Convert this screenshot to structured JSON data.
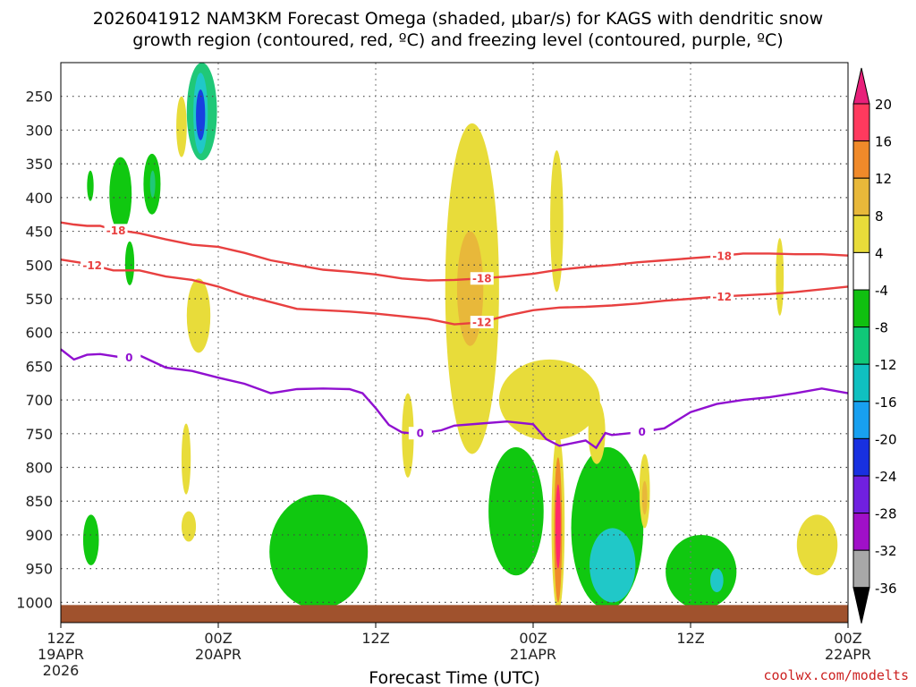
{
  "chart_data": {
    "type": "heatmap",
    "title_line1": "2026041912 NAM3KM Forecast Omega (shaded, μbar/s) for KAGS with dendritic snow",
    "title_line2": "growth region (contoured, red, ºC) and freezing level (contoured, purple, ºC)",
    "xlabel": "Forecast Time (UTC)",
    "ylabel": "",
    "credit": "coolwx.com/modelts",
    "x_range_hours": [
      0,
      60
    ],
    "y_range_hPa": [
      200,
      1030
    ],
    "y_ticks": [
      250,
      300,
      350,
      400,
      450,
      500,
      550,
      600,
      650,
      700,
      750,
      800,
      850,
      900,
      950,
      1000
    ],
    "x_ticks": [
      {
        "hour": 0,
        "line1": "12Z",
        "line2": "19APR",
        "line3": "2026"
      },
      {
        "hour": 12,
        "line1": "00Z",
        "line2": "20APR",
        "line3": ""
      },
      {
        "hour": 24,
        "line1": "12Z",
        "line2": "",
        "line3": ""
      },
      {
        "hour": 36,
        "line1": "00Z",
        "line2": "21APR",
        "line3": ""
      },
      {
        "hour": 48,
        "line1": "12Z",
        "line2": "",
        "line3": ""
      },
      {
        "hour": 60,
        "line1": "00Z",
        "line2": "22APR",
        "line3": ""
      }
    ],
    "colorbar": {
      "labels": [
        "20",
        "16",
        "12",
        "8",
        "4",
        "-4",
        "-8",
        "-12",
        "-16",
        "-20",
        "-24",
        "-28",
        "-32",
        "-36"
      ],
      "colors": [
        "#ff3a5e",
        "#f08a2a",
        "#e8b83a",
        "#e8dc3a",
        "#ffffff",
        "#10c010",
        "#10c878",
        "#10c0c0",
        "#18a0f0",
        "#1830e0",
        "#7020e0",
        "#a010c8",
        "#a8a8a8"
      ],
      "top_arrow_color": "#e8207a",
      "bottom_arrow_color": "#000000"
    },
    "omega_regions": [
      {
        "name": "upper-updraft-core",
        "t0": 9.6,
        "t1": 11.9,
        "p_top": 200,
        "p_bot": 345,
        "level": "-8"
      },
      {
        "name": "upper-updraft-inner",
        "t0": 10.1,
        "t1": 11.2,
        "p_top": 215,
        "p_bot": 335,
        "level": "-12"
      },
      {
        "name": "upper-updraft-deep",
        "t0": 10.3,
        "t1": 11.0,
        "p_top": 240,
        "p_bot": 315,
        "level": "-20"
      },
      {
        "name": "upper-sink",
        "t0": 8.8,
        "t1": 9.6,
        "p_top": 250,
        "p_bot": 340,
        "level": "4"
      },
      {
        "name": "cell-a",
        "t0": 2.0,
        "t1": 2.5,
        "p_top": 360,
        "p_bot": 405,
        "level": "-4"
      },
      {
        "name": "cell-b",
        "t0": 3.7,
        "t1": 5.4,
        "p_top": 340,
        "p_bot": 450,
        "level": "-4"
      },
      {
        "name": "cell-c",
        "t0": 6.3,
        "t1": 7.6,
        "p_top": 335,
        "p_bot": 425,
        "level": "-4"
      },
      {
        "name": "cell-c-inner",
        "t0": 6.8,
        "t1": 7.2,
        "p_top": 360,
        "p_bot": 400,
        "level": "-8"
      },
      {
        "name": "cell-d",
        "t0": 4.9,
        "t1": 5.6,
        "p_top": 465,
        "p_bot": 530,
        "level": "-4"
      },
      {
        "name": "sink-mid",
        "t0": 9.6,
        "t1": 11.4,
        "p_top": 520,
        "p_bot": 630,
        "level": "4"
      },
      {
        "name": "sink-low",
        "t0": 9.2,
        "t1": 9.9,
        "p_top": 735,
        "p_bot": 840,
        "level": "4"
      },
      {
        "name": "sink-tiny",
        "t0": 9.2,
        "t1": 10.3,
        "p_top": 865,
        "p_bot": 910,
        "level": "4"
      },
      {
        "name": "cell-e",
        "t0": 1.7,
        "t1": 2.9,
        "p_top": 870,
        "p_bot": 945,
        "level": "-4"
      },
      {
        "name": "low-cell-1",
        "t0": 15.9,
        "t1": 23.4,
        "p_top": 840,
        "p_bot": 1010,
        "level": "-4"
      },
      {
        "name": "main-sink",
        "t0": 29.3,
        "t1": 33.4,
        "p_top": 290,
        "p_bot": 780,
        "level": "4"
      },
      {
        "name": "main-sink-core",
        "t0": 30.2,
        "t1": 32.2,
        "p_top": 450,
        "p_bot": 620,
        "level": "8"
      },
      {
        "name": "sink-narrow-1",
        "t0": 26.0,
        "t1": 26.9,
        "p_top": 690,
        "p_bot": 815,
        "level": "4"
      },
      {
        "name": "sink-narrow-2",
        "t0": 37.3,
        "t1": 38.3,
        "p_top": 330,
        "p_bot": 540,
        "level": "4"
      },
      {
        "name": "sink-wide",
        "t0": 33.4,
        "t1": 41.1,
        "p_top": 640,
        "p_bot": 760,
        "level": "4"
      },
      {
        "name": "low-cell-2",
        "t0": 32.6,
        "t1": 36.8,
        "p_top": 770,
        "p_bot": 960,
        "level": "-4"
      },
      {
        "name": "red-column",
        "t0": 37.4,
        "t1": 38.4,
        "p_top": 750,
        "p_bot": 1015,
        "level": "4"
      },
      {
        "name": "red-column-mid",
        "t0": 37.6,
        "t1": 38.2,
        "p_top": 785,
        "p_bot": 1000,
        "level": "12"
      },
      {
        "name": "red-column-core",
        "t0": 37.7,
        "t1": 38.1,
        "p_top": 825,
        "p_bot": 950,
        "level": "20"
      },
      {
        "name": "low-cell-3",
        "t0": 38.9,
        "t1": 44.4,
        "p_top": 770,
        "p_bot": 1010,
        "level": "-4"
      },
      {
        "name": "low-cell-3-inner",
        "t0": 40.3,
        "t1": 43.8,
        "p_top": 890,
        "p_bot": 1000,
        "level": "-12"
      },
      {
        "name": "sink-right",
        "t0": 40.2,
        "t1": 41.5,
        "p_top": 700,
        "p_bot": 795,
        "level": "4"
      },
      {
        "name": "sink-right-2",
        "t0": 44.1,
        "t1": 44.9,
        "p_top": 780,
        "p_bot": 890,
        "level": "4"
      },
      {
        "name": "sink-right-2-core",
        "t0": 44.3,
        "t1": 44.7,
        "p_top": 820,
        "p_bot": 870,
        "level": "8"
      },
      {
        "name": "low-cell-4",
        "t0": 46.1,
        "t1": 51.5,
        "p_top": 900,
        "p_bot": 1010,
        "level": "-4"
      },
      {
        "name": "low-cell-4-inner",
        "t0": 49.5,
        "t1": 50.5,
        "p_top": 950,
        "p_bot": 985,
        "level": "-12"
      },
      {
        "name": "sink-far-right",
        "t0": 54.5,
        "t1": 55.1,
        "p_top": 460,
        "p_bot": 575,
        "level": "4"
      },
      {
        "name": "sink-far-right-low",
        "t0": 56.1,
        "t1": 59.2,
        "p_top": 870,
        "p_bot": 960,
        "level": "4"
      }
    ],
    "isotherms": [
      {
        "label": "-18",
        "color": "#e84040",
        "label_hours": [
          4.2,
          32.1,
          50.4
        ],
        "points": [
          [
            0,
            437
          ],
          [
            1,
            440
          ],
          [
            2,
            442
          ],
          [
            3,
            442
          ],
          [
            4,
            448
          ],
          [
            5,
            450
          ],
          [
            6,
            453
          ],
          [
            8,
            462
          ],
          [
            10,
            470
          ],
          [
            12,
            473
          ],
          [
            14,
            482
          ],
          [
            16,
            493
          ],
          [
            18,
            500
          ],
          [
            20,
            507
          ],
          [
            22,
            510
          ],
          [
            24,
            514
          ],
          [
            26,
            520
          ],
          [
            28,
            523
          ],
          [
            30,
            522
          ],
          [
            32,
            520
          ],
          [
            34,
            517
          ],
          [
            36,
            513
          ],
          [
            38,
            507
          ],
          [
            40,
            503
          ],
          [
            42,
            500
          ],
          [
            44,
            496
          ],
          [
            46,
            493
          ],
          [
            48,
            490
          ],
          [
            50,
            487
          ],
          [
            52,
            483
          ],
          [
            54,
            483
          ],
          [
            56,
            484
          ],
          [
            58,
            484
          ],
          [
            60,
            486
          ]
        ]
      },
      {
        "label": "-12",
        "color": "#e84040",
        "label_hours": [
          2.4,
          32.1,
          50.4
        ],
        "points": [
          [
            0,
            492
          ],
          [
            2,
            498
          ],
          [
            4,
            508
          ],
          [
            6,
            508
          ],
          [
            8,
            517
          ],
          [
            10,
            522
          ],
          [
            12,
            532
          ],
          [
            14,
            545
          ],
          [
            16,
            555
          ],
          [
            18,
            565
          ],
          [
            20,
            567
          ],
          [
            22,
            569
          ],
          [
            24,
            572
          ],
          [
            26,
            576
          ],
          [
            28,
            580
          ],
          [
            30,
            588
          ],
          [
            32,
            585
          ],
          [
            34,
            575
          ],
          [
            36,
            567
          ],
          [
            38,
            563
          ],
          [
            40,
            562
          ],
          [
            42,
            560
          ],
          [
            44,
            557
          ],
          [
            46,
            553
          ],
          [
            48,
            550
          ],
          [
            50,
            547
          ],
          [
            52,
            545
          ],
          [
            54,
            543
          ],
          [
            56,
            540
          ],
          [
            58,
            536
          ],
          [
            60,
            532
          ]
        ]
      },
      {
        "label": "0",
        "color": "#9010d0",
        "label_hours": [
          5.2,
          27.4,
          44.3
        ],
        "points": [
          [
            0,
            625
          ],
          [
            1,
            640
          ],
          [
            2,
            633
          ],
          [
            3,
            632
          ],
          [
            4,
            635
          ],
          [
            5,
            638
          ],
          [
            6,
            634
          ],
          [
            7,
            643
          ],
          [
            8,
            652
          ],
          [
            10,
            657
          ],
          [
            12,
            667
          ],
          [
            14,
            676
          ],
          [
            16,
            690
          ],
          [
            18,
            684
          ],
          [
            20,
            683
          ],
          [
            22,
            684
          ],
          [
            23,
            690
          ],
          [
            24,
            712
          ],
          [
            25,
            737
          ],
          [
            26,
            748
          ],
          [
            27,
            750
          ],
          [
            28,
            748
          ],
          [
            29,
            745
          ],
          [
            30,
            738
          ],
          [
            32,
            735
          ],
          [
            34,
            732
          ],
          [
            36,
            736
          ],
          [
            37,
            758
          ],
          [
            38,
            768
          ],
          [
            40,
            760
          ],
          [
            40.8,
            771
          ],
          [
            41.5,
            749
          ],
          [
            42,
            752
          ],
          [
            44,
            748
          ],
          [
            46,
            742
          ],
          [
            48,
            718
          ],
          [
            50,
            706
          ],
          [
            52,
            700
          ],
          [
            54,
            696
          ],
          [
            56,
            690
          ],
          [
            58,
            683
          ],
          [
            60,
            690
          ]
        ]
      }
    ]
  }
}
